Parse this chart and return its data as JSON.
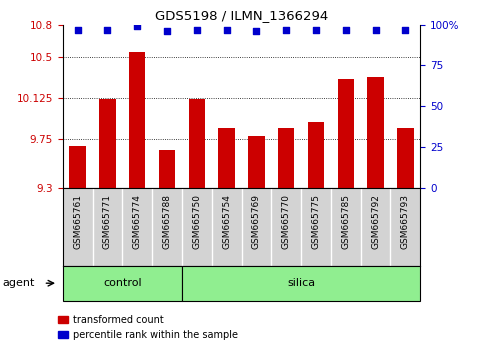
{
  "title": "GDS5198 / ILMN_1366294",
  "categories": [
    "GSM665761",
    "GSM665771",
    "GSM665774",
    "GSM665788",
    "GSM665750",
    "GSM665754",
    "GSM665769",
    "GSM665770",
    "GSM665775",
    "GSM665785",
    "GSM665792",
    "GSM665793"
  ],
  "bar_values": [
    9.68,
    10.12,
    10.55,
    9.65,
    10.12,
    9.85,
    9.78,
    9.85,
    9.9,
    10.3,
    10.32,
    9.85
  ],
  "percentile_values": [
    97,
    97,
    99,
    96,
    97,
    97,
    96,
    97,
    97,
    97,
    97,
    97
  ],
  "bar_color": "#cc0000",
  "dot_color": "#0000cc",
  "ylim_left": [
    9.3,
    10.8
  ],
  "ylim_right": [
    0,
    100
  ],
  "yticks_left": [
    9.3,
    9.75,
    10.125,
    10.5,
    10.8
  ],
  "yticks_right": [
    0,
    25,
    50,
    75,
    100
  ],
  "ytick_labels_left": [
    "9.3",
    "9.75",
    "10.125",
    "10.5",
    "10.8"
  ],
  "ytick_labels_right": [
    "0",
    "25",
    "50",
    "75",
    "100%"
  ],
  "grid_values": [
    9.75,
    10.125,
    10.5
  ],
  "n_control": 4,
  "n_silica": 8,
  "group_color": "#90ee90",
  "plot_bg_color": "#ffffff",
  "xtick_bg_color": "#d3d3d3",
  "legend_red_label": "transformed count",
  "legend_blue_label": "percentile rank within the sample",
  "agent_label": "agent",
  "bar_width": 0.55
}
